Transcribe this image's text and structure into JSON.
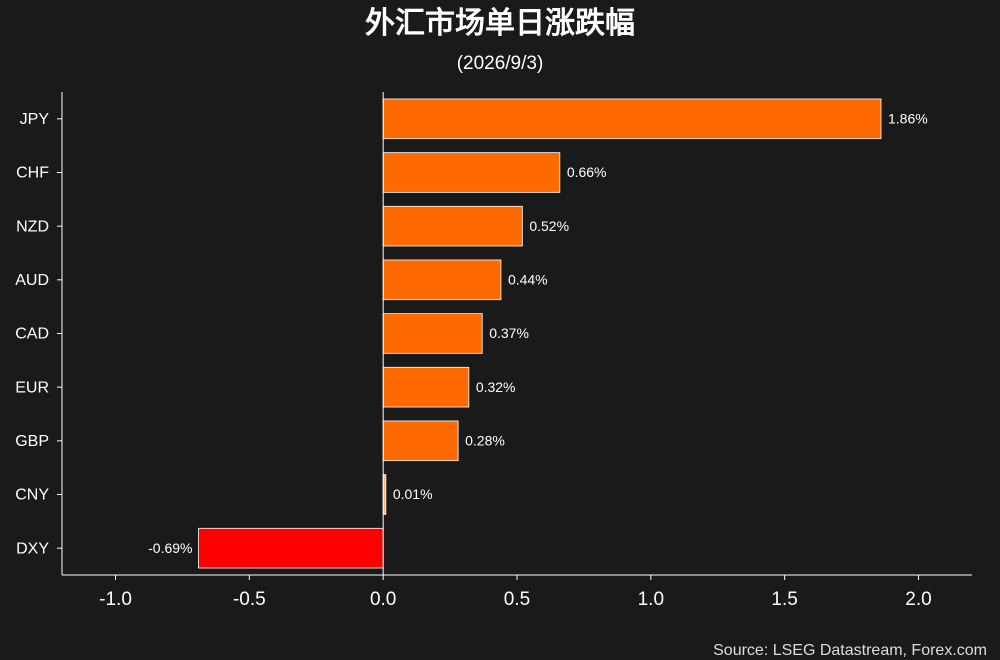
{
  "chart_data": {
    "type": "bar",
    "orientation": "horizontal",
    "title": "外汇市场单日涨跌幅",
    "subtitle": "(2026/9/3)",
    "source": "Source: LSEG Datastream, Forex.com",
    "categories": [
      "JPY",
      "CHF",
      "NZD",
      "AUD",
      "CAD",
      "EUR",
      "GBP",
      "CNY",
      "DXY"
    ],
    "values": [
      1.86,
      0.66,
      0.52,
      0.44,
      0.37,
      0.32,
      0.28,
      0.01,
      -0.69
    ],
    "value_labels": [
      "1.86%",
      "0.66%",
      "0.52%",
      "0.44%",
      "0.37%",
      "0.32%",
      "0.28%",
      "0.01%",
      "-0.69%"
    ],
    "colors": [
      "#ff6a00",
      "#ff6a00",
      "#ff6a00",
      "#ff6a00",
      "#ff6a00",
      "#ff6a00",
      "#ff6a00",
      "#ffb27a",
      "#ff0000"
    ],
    "xlim": [
      -1.2,
      2.2
    ],
    "xticks": [
      {
        "value": -1,
        "label": "-1.0"
      },
      -0.5,
      {
        "value": 0,
        "label": "0.0"
      },
      0.5,
      {
        "value": 1,
        "label": "1.0"
      },
      1.5,
      {
        "value": 2,
        "label": "2.0"
      }
    ]
  }
}
